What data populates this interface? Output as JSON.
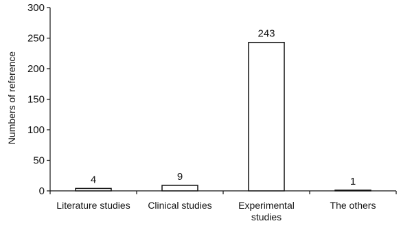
{
  "chart_data": {
    "type": "bar",
    "title": "",
    "xlabel": "",
    "ylabel": "Numbers of reference",
    "categories": [
      [
        "Literature studies"
      ],
      [
        "Clinical studies"
      ],
      [
        "Experimental",
        "studies"
      ],
      [
        "The others"
      ]
    ],
    "values": [
      4,
      9,
      243,
      1
    ],
    "data_labels": [
      "4",
      "9",
      "243",
      "1"
    ],
    "ylim": [
      0,
      300
    ],
    "yticks": [
      0,
      50,
      100,
      150,
      200,
      250,
      300
    ],
    "grid": false,
    "legend": "none",
    "colors": {
      "bar_fill": "#ffffff",
      "bar_stroke": "#111111",
      "axis": "#111111",
      "text": "#111111"
    }
  }
}
